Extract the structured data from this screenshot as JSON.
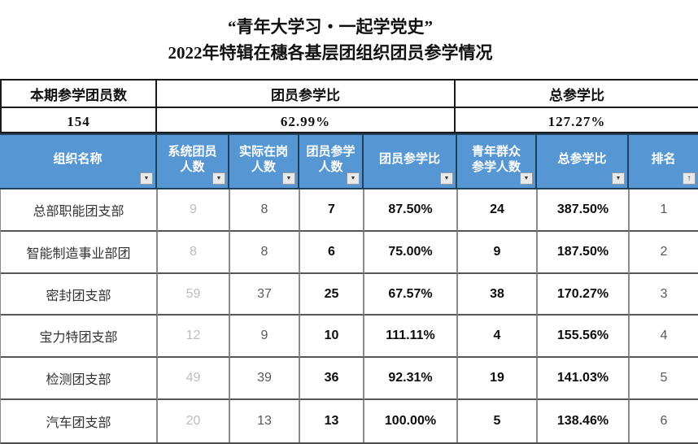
{
  "title": {
    "line1": "“青年大学习・一起学党史”",
    "line2": "2022年特辑在穗各基层团组织团员参学情况"
  },
  "summary": {
    "columns": [
      {
        "label": "本期参学团员数",
        "value": "154"
      },
      {
        "label": "团员参学比",
        "value": "62.99%"
      },
      {
        "label": "总参学比",
        "value": "127.27%"
      }
    ]
  },
  "table": {
    "headers": [
      {
        "label": "组织名称"
      },
      {
        "label": "系统团员\n人数"
      },
      {
        "label": "实际在岗\n人数"
      },
      {
        "label": "团员参学\n人数"
      },
      {
        "label": "团员参学比"
      },
      {
        "label": "青年群众\n参学人数"
      },
      {
        "label": "总参学比"
      },
      {
        "label": "排名"
      }
    ],
    "rows": [
      {
        "org": "总部职能团支部",
        "sys": "9",
        "actual": "8",
        "participated": "7",
        "member_ratio": "87.50%",
        "youth": "24",
        "total_ratio": "387.50%",
        "rank": "1"
      },
      {
        "org": "智能制造事业部团",
        "sys": "8",
        "actual": "8",
        "participated": "6",
        "member_ratio": "75.00%",
        "youth": "9",
        "total_ratio": "187.50%",
        "rank": "2"
      },
      {
        "org": "密封团支部",
        "sys": "59",
        "actual": "37",
        "participated": "25",
        "member_ratio": "67.57%",
        "youth": "38",
        "total_ratio": "170.27%",
        "rank": "3"
      },
      {
        "org": "宝力特团支部",
        "sys": "12",
        "actual": "9",
        "participated": "10",
        "member_ratio": "111.11%",
        "youth": "4",
        "total_ratio": "155.56%",
        "rank": "4"
      },
      {
        "org": "检测团支部",
        "sys": "49",
        "actual": "39",
        "participated": "36",
        "member_ratio": "92.31%",
        "youth": "19",
        "total_ratio": "141.03%",
        "rank": "5"
      },
      {
        "org": "汽车团支部",
        "sys": "20",
        "actual": "13",
        "participated": "13",
        "member_ratio": "100.00%",
        "youth": "5",
        "total_ratio": "138.46%",
        "rank": "6"
      }
    ]
  },
  "icons": {
    "filter_dropdown": "▼",
    "sort_ascending": "↑"
  },
  "colors": {
    "header_blue": "#5696d2",
    "header_separator": "#20405f",
    "header_text": "#ffffff",
    "muted_value": "#bcbcbc",
    "secondary_value": "#595959",
    "emphasis_value": "#0d0d0d",
    "grid_line_vertical": "#8c8c8c",
    "grid_line_horizontal": "#565656",
    "summary_border": "#1a1a1a"
  }
}
